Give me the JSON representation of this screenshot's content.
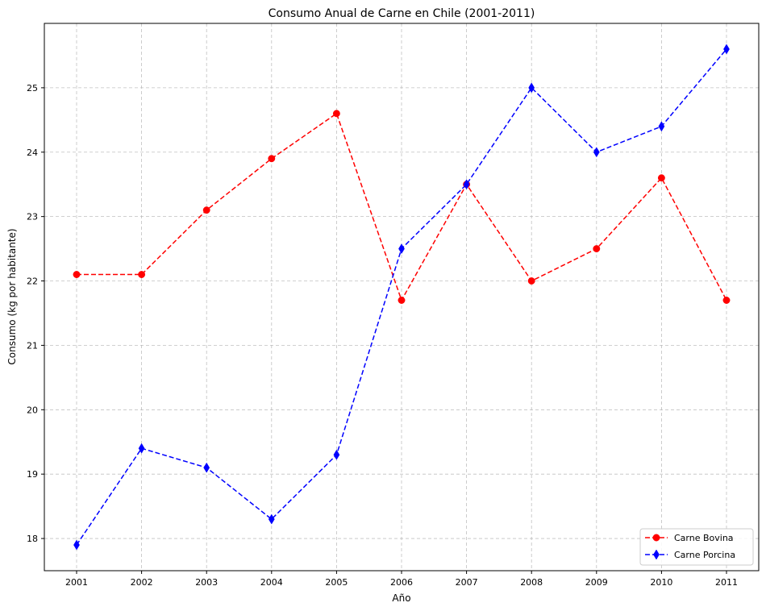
{
  "chart_data": {
    "type": "line",
    "title": "Consumo Anual de Carne en Chile (2001-2011)",
    "xlabel": "Año",
    "ylabel": "Consumo (kg por habitante)",
    "x": [
      2001,
      2002,
      2003,
      2004,
      2005,
      2006,
      2007,
      2008,
      2009,
      2010,
      2011
    ],
    "x_tick_labels": [
      "2001",
      "2002",
      "2003",
      "2004",
      "2005",
      "2006",
      "2007",
      "2008",
      "2009",
      "2010",
      "2011"
    ],
    "ylim": [
      17.5,
      26.0
    ],
    "y_ticks": [
      18,
      19,
      20,
      21,
      22,
      23,
      24,
      25
    ],
    "y_tick_labels": [
      "18",
      "19",
      "20",
      "21",
      "22",
      "23",
      "24",
      "25"
    ],
    "grid": true,
    "legend_position": "bottom-right",
    "series": [
      {
        "name": "Carne Bovina",
        "color": "#ff0000",
        "marker": "circle",
        "linestyle": "dashed",
        "values": [
          22.1,
          22.1,
          23.1,
          23.9,
          24.6,
          21.7,
          23.5,
          22.0,
          22.5,
          23.6,
          21.7
        ]
      },
      {
        "name": "Carne Porcina",
        "color": "#0000ff",
        "marker": "thin-diamond",
        "linestyle": "dashed",
        "values": [
          17.9,
          19.4,
          19.1,
          18.3,
          19.3,
          22.5,
          23.5,
          25.0,
          24.0,
          24.4,
          25.6
        ]
      }
    ]
  }
}
